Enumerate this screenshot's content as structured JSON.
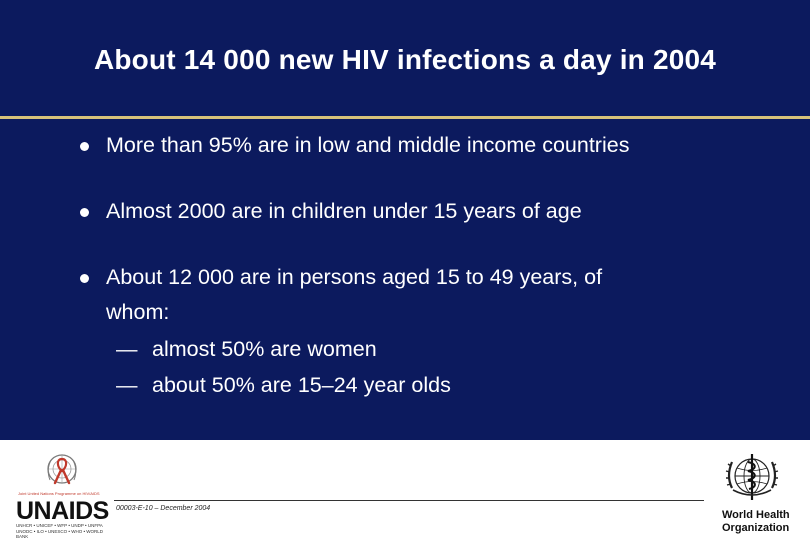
{
  "slide": {
    "title": "About 14 000 new HIV infections a day in 2004",
    "bullets": [
      {
        "text": "More than 95% are in low and middle income countries"
      },
      {
        "text": "Almost 2000 are in children under 15 years of age"
      },
      {
        "lines": [
          "About 12 000 are in persons aged 15 to 49 years, of",
          "whom:"
        ]
      }
    ],
    "sub_bullets": [
      {
        "dash": "—",
        "text": "almost 50% are women"
      },
      {
        "dash": "—",
        "text": "about 50% are 15–24 year olds"
      }
    ]
  },
  "footer": {
    "code": "00003-E-10 – December 2004"
  },
  "logos": {
    "unaids": {
      "tagline": "Joint United Nations Programme on HIV/AIDS",
      "word": "UNAIDS",
      "sponsors_line1": "UNHCR • UNICEF • WFP • UNDP • UNFPA",
      "sponsors_line2": "UNODC • ILO • UNESCO • WHO • WORLD BANK"
    },
    "who": {
      "line1": "World Health",
      "line2": "Organization"
    }
  },
  "colors": {
    "background": "#0c1a5e",
    "rule": "#d8c27a",
    "text": "#ffffff",
    "ribbon": "#c0392b"
  }
}
